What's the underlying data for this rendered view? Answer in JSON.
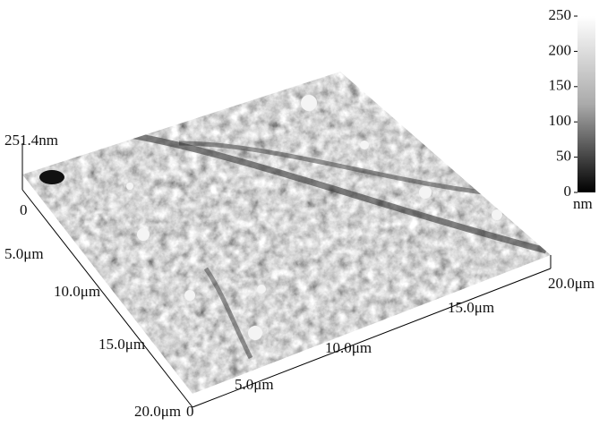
{
  "z_axis": {
    "max_label": "251.4nm",
    "origin_label": "0"
  },
  "x_axis": {
    "labels": [
      "5.0μm",
      "10.0μm",
      "15.0μm",
      "20.0μm"
    ]
  },
  "y_axis": {
    "labels": [
      "5.0μm",
      "10.0μm",
      "15.0μm",
      "20.0μm"
    ],
    "origin_label": "0"
  },
  "color_scale": {
    "ticks": [
      0,
      50,
      100,
      150,
      200,
      250
    ],
    "unit": "nm"
  }
}
